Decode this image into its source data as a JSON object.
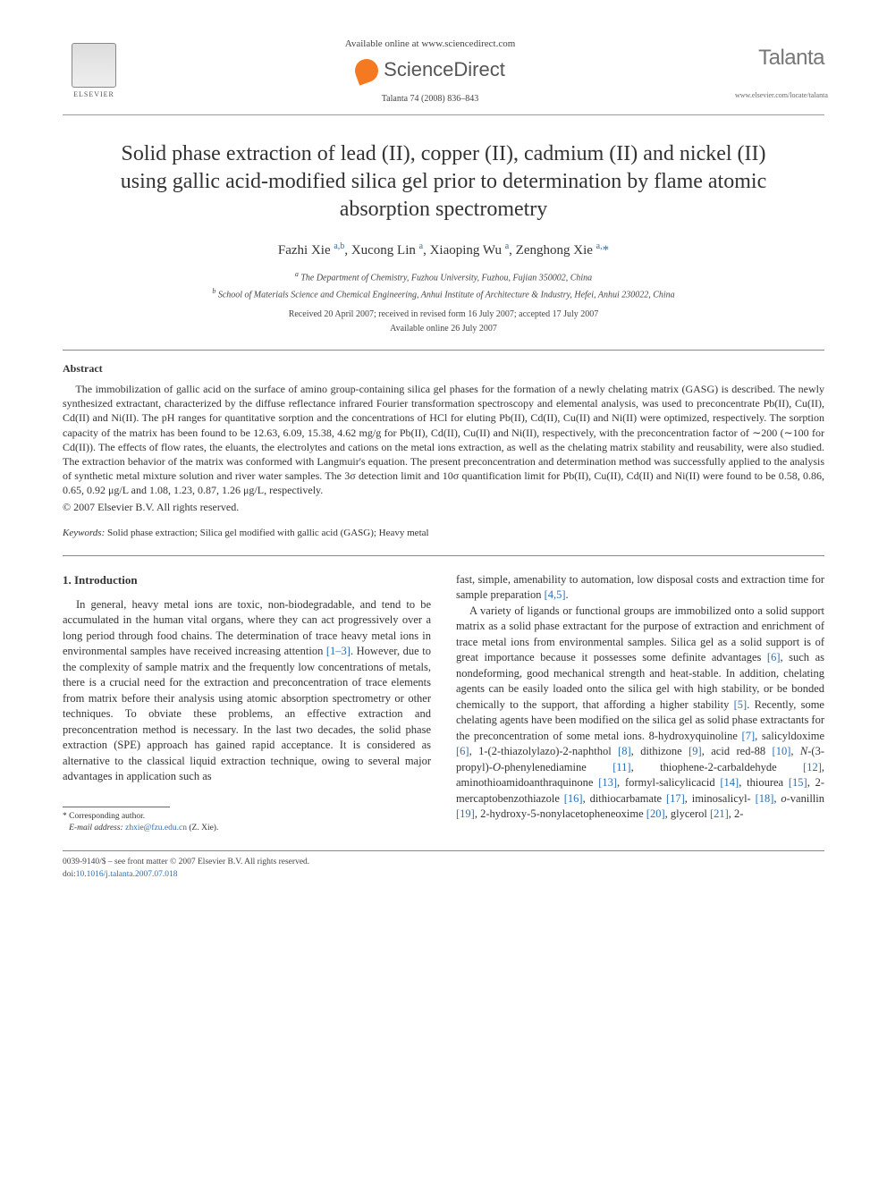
{
  "header": {
    "publisher": "ELSEVIER",
    "available_text": "Available online at www.sciencedirect.com",
    "sd_label": "ScienceDirect",
    "citation": "Talanta 74 (2008) 836–843",
    "journal_name": "Talanta",
    "journal_url": "www.elsevier.com/locate/talanta"
  },
  "title": "Solid phase extraction of lead (II), copper (II), cadmium (II) and nickel (II) using gallic acid-modified silica gel prior to determination by flame atomic absorption spectrometry",
  "authors_html": "Fazhi Xie <sup>a,b</sup>, Xucong Lin <sup>a</sup>, Xiaoping Wu <sup>a</sup>, Zenghong Xie <sup>a,</sup><a>*</a>",
  "affiliations": {
    "a": "The Department of Chemistry, Fuzhou University, Fuzhou, Fujian 350002, China",
    "b": "School of Materials Science and Chemical Engineering, Anhui Institute of Architecture & Industry, Hefei, Anhui 230022, China"
  },
  "dates": {
    "received": "Received 20 April 2007; received in revised form 16 July 2007; accepted 17 July 2007",
    "online": "Available online 26 July 2007"
  },
  "abstract": {
    "heading": "Abstract",
    "body": "The immobilization of gallic acid on the surface of amino group-containing silica gel phases for the formation of a newly chelating matrix (GASG) is described. The newly synthesized extractant, characterized by the diffuse reflectance infrared Fourier transformation spectroscopy and elemental analysis, was used to preconcentrate Pb(II), Cu(II), Cd(II) and Ni(II). The pH ranges for quantitative sorption and the concentrations of HCl for eluting Pb(II), Cd(II), Cu(II) and Ni(II) were optimized, respectively. The sorption capacity of the matrix has been found to be 12.63, 6.09, 15.38, 4.62 mg/g for Pb(II), Cd(II), Cu(II) and Ni(II), respectively, with the preconcentration factor of ∼200 (∼100 for Cd(II)). The effects of flow rates, the eluants, the electrolytes and cations on the metal ions extraction, as well as the chelating matrix stability and reusability, were also studied. The extraction behavior of the matrix was conformed with Langmuir's equation. The present preconcentration and determination method was successfully applied to the analysis of synthetic metal mixture solution and river water samples. The 3σ detection limit and 10σ quantification limit for Pb(II), Cu(II), Cd(II) and Ni(II) were found to be 0.58, 0.86, 0.65, 0.92 μg/L and 1.08, 1.23, 0.87, 1.26 μg/L, respectively.",
    "copyright": "© 2007 Elsevier B.V. All rights reserved."
  },
  "keywords": {
    "label": "Keywords:",
    "text": "Solid phase extraction; Silica gel modified with gallic acid (GASG); Heavy metal"
  },
  "section": {
    "heading": "1. Introduction",
    "left": "In general, heavy metal ions are toxic, non-biodegradable, and tend to be accumulated in the human vital organs, where they can act progressively over a long period through food chains. The determination of trace heavy metal ions in environmental samples have received increasing attention [1–3]. However, due to the complexity of sample matrix and the frequently low concentrations of metals, there is a crucial need for the extraction and preconcentration of trace elements from matrix before their analysis using atomic absorption spectrometry or other techniques. To obviate these problems, an effective extraction and preconcentration method is necessary. In the last two decades, the solid phase extraction (SPE) approach has gained rapid acceptance. It is considered as alternative to the classical liquid extraction technique, owing to several major advantages in application such as",
    "right_p1": "fast, simple, amenability to automation, low disposal costs and extraction time for sample preparation [4,5].",
    "right_p2": "A variety of ligands or functional groups are immobilized onto a solid support matrix as a solid phase extractant for the purpose of extraction and enrichment of trace metal ions from environmental samples. Silica gel as a solid support is of great importance because it possesses some definite advantages [6], such as nondeforming, good mechanical strength and heat-stable. In addition, chelating agents can be easily loaded onto the silica gel with high stability, or be bonded chemically to the support, that affording a higher stability [5]. Recently, some chelating agents have been modified on the silica gel as solid phase extractants for the preconcentration of some metal ions. 8-hydroxyquinoline [7], salicyldoxime [6], 1-(2-thiazolylazo)-2-naphthol [8], dithizone [9], acid red-88 [10], N-(3-propyl)-O-phenylenediamine [11], thiophene-2-carbaldehyde [12], aminothioamidoanthraquinone [13], formyl-salicylicacid [14], thiourea [15], 2-mercaptobenzothiazole [16], dithiocarbamate [17], iminosalicyl- [18], o-vanillin [19], 2-hydroxy-5-nonylacetopheneoxime [20], glycerol [21], 2-"
  },
  "footnote": {
    "corr": "Corresponding author.",
    "email_label": "E-mail address:",
    "email": "zhxie@fzu.edu.cn",
    "email_who": "(Z. Xie)."
  },
  "footer": {
    "line": "0039-9140/$ – see front matter © 2007 Elsevier B.V. All rights reserved.",
    "doi_label": "doi:",
    "doi": "10.1016/j.talanta.2007.07.018"
  },
  "colors": {
    "link": "#2a6fb5",
    "text": "#333333",
    "orange": "#f47920"
  }
}
